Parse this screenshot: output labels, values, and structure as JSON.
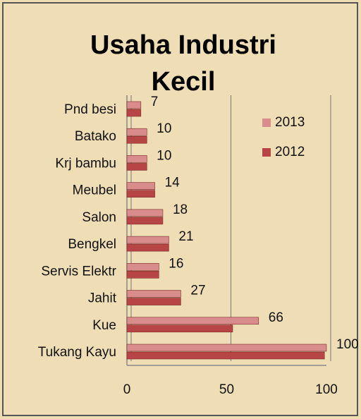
{
  "chart_data": {
    "type": "bar",
    "orientation": "horizontal",
    "title": "Usaha Industri Kecil",
    "categories": [
      "Pnd besi",
      "Batako",
      "Krj bambu",
      "Meubel",
      "Salon",
      "Bengkel",
      "Servis Elektr",
      "Jahit",
      "Kue",
      "Tukang Kayu"
    ],
    "series": [
      {
        "name": "2013",
        "color": "#d98c8c",
        "values": [
          7,
          10,
          10,
          14,
          18,
          21,
          16,
          27,
          66,
          100
        ]
      },
      {
        "name": "2012",
        "color": "#b84545",
        "values": [
          7,
          10,
          10,
          14,
          18,
          21,
          16,
          27,
          53,
          99
        ]
      }
    ],
    "xlim": [
      0,
      100
    ],
    "xticks": [
      0,
      50,
      100
    ],
    "grid": true,
    "legend": "upper right"
  }
}
